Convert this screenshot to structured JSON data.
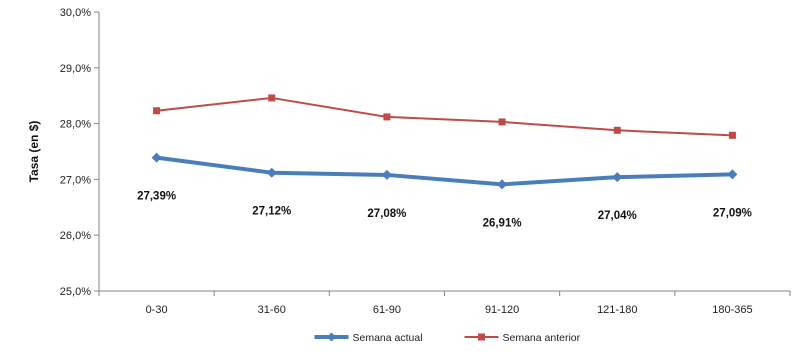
{
  "chart_data": {
    "type": "line",
    "title": "",
    "xlabel": "",
    "ylabel": "Tasa (en $)",
    "categories": [
      "0-30",
      "31-60",
      "61-90",
      "91-120",
      "121-180",
      "180-365"
    ],
    "ylim": [
      25.0,
      30.0
    ],
    "y_ticks": [
      "25,0%",
      "26,0%",
      "27,0%",
      "28,0%",
      "29,0%",
      "30,0%"
    ],
    "grid": false,
    "legend_position": "bottom",
    "series": [
      {
        "name": "Semana actual",
        "color": "#4A7EBB",
        "marker": "diamond",
        "values": [
          27.39,
          27.12,
          27.08,
          26.91,
          27.04,
          27.09
        ],
        "data_labels": [
          "27,39%",
          "27,12%",
          "27,08%",
          "26,91%",
          "27,04%",
          "27,09%"
        ]
      },
      {
        "name": "Semana anterior",
        "color": "#BE4B48",
        "marker": "square",
        "values": [
          28.23,
          28.46,
          28.12,
          28.03,
          27.88,
          27.79
        ]
      }
    ]
  }
}
